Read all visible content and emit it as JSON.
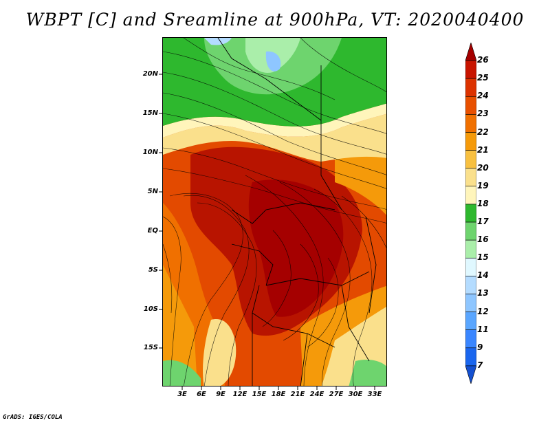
{
  "title": "WBPT [C] and Sreamline at 900hPa, VT: 2020040400",
  "footer": "GrADS: IGES/COLA",
  "map": {
    "lat_labels": [
      "20N",
      "15N",
      "10N",
      "5N",
      "EQ",
      "5S",
      "10S",
      "15S"
    ],
    "lon_labels": [
      "3E",
      "6E",
      "9E",
      "12E",
      "15E",
      "18E",
      "21E",
      "24E",
      "27E",
      "30E",
      "33E"
    ]
  },
  "colorbar": {
    "labels": [
      "26",
      "25",
      "24",
      "23",
      "22",
      "21",
      "20",
      "19",
      "18",
      "17",
      "16",
      "15",
      "14",
      "13",
      "12",
      "11",
      "9",
      "7"
    ],
    "colors": [
      "#a50000",
      "#c81400",
      "#dc3200",
      "#e85000",
      "#f07000",
      "#f59a0a",
      "#f8c040",
      "#fae08c",
      "#fff5bb",
      "#2eb82e",
      "#6ed46e",
      "#aaeeaa",
      "#e0f8ff",
      "#b4dcff",
      "#8ec6ff",
      "#5aa6ff",
      "#3a86ff",
      "#1a66ee",
      "#1450d0"
    ]
  }
}
